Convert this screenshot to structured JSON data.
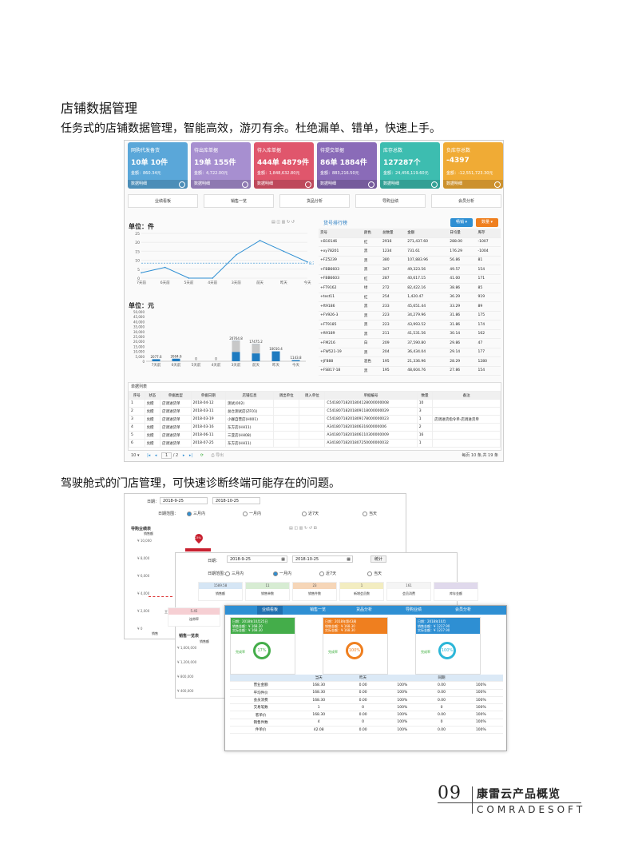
{
  "heading": "店铺数据管理",
  "para1": "任务式的店铺数据管理，智能高效，游刃有余。杜绝漏单、错单，快速上手。",
  "para2": "驾驶舱式的门店管理，可快速诊断终端可能存在的问题。",
  "cards": [
    {
      "title": "网购代发备货",
      "value": "10单  10件",
      "amount": "金额：860.34元",
      "footer": "数据明细",
      "color": "#5aa7d9"
    },
    {
      "title": "待出库单据",
      "value": "19单  155件",
      "amount": "金额：4,722.00元",
      "footer": "数据明细",
      "color": "#a78fd0"
    },
    {
      "title": "待入库单据",
      "value": "444单  4879件",
      "amount": "金额：1,848,632.80元",
      "footer": "数据明细",
      "color": "#e0566c"
    },
    {
      "title": "待提交单据",
      "value": "86单  1884件",
      "amount": "金额：883,216.50元",
      "footer": "数据明细",
      "color": "#8a6bb8"
    },
    {
      "title": "库存总数",
      "value": "127287个",
      "amount": "金额：24,456,119.60元",
      "footer": "数据明细",
      "color": "#3dbdb0"
    },
    {
      "title": "负库存总数",
      "value": "-4397",
      "amount": "金额：-12,551,723.30元",
      "footer": "数据明细",
      "color": "#f0ab35"
    }
  ],
  "tabs": [
    "业绩看板",
    "销售一览",
    "货品分析",
    "导购业绩",
    "会员分析"
  ],
  "chart1": {
    "title": "单位：件",
    "type": "line",
    "categories": [
      "7天前",
      "6天前",
      "5天前",
      "4天前",
      "3天前",
      "前天",
      "昨天",
      "今天"
    ],
    "values": [
      3,
      6,
      0,
      0,
      13,
      21,
      15,
      9
    ],
    "avg": 8.38,
    "avg_label": "8.38",
    "yticks": [
      "0",
      "5",
      "10",
      "15",
      "20",
      "25"
    ],
    "ylim": [
      0,
      25
    ]
  },
  "chart2": {
    "title": "单位：元",
    "type": "bar",
    "categories": [
      "7天前",
      "6天前",
      "5天前",
      "4天前",
      "3天前",
      "前天",
      "昨天",
      "今天"
    ],
    "values": [
      2077.6,
      2604.6,
      0,
      0,
      20764.8,
      17475.2,
      10010.4,
      1143.8
    ],
    "labels": [
      "2077.6",
      "2604.6",
      "0",
      "0",
      "20764.8",
      "17475.2",
      "10010.4",
      "1143.8"
    ],
    "yticks": [
      "0",
      "5,000",
      "10,000",
      "15,000",
      "20,000",
      "25,000",
      "30,000",
      "35,000",
      "40,000",
      "45,000",
      "50,000"
    ],
    "ylim": [
      0,
      50000
    ]
  },
  "rank": {
    "title": "货号排行榜",
    "btn1": "畅销",
    "btn2": "数量",
    "headers": [
      "货号",
      "颜色",
      "总数量",
      "金额",
      "日均量",
      "库存"
    ],
    "rows": [
      [
        "+B10146",
        "红",
        "2916",
        "271,437.60",
        "288.00",
        "-1007"
      ],
      [
        "+xy78201",
        "黑",
        "1234",
        "731.61",
        "176.29",
        "-1004"
      ],
      [
        "+FZ5239",
        "黑",
        "380",
        "107,883.96",
        "56.86",
        "81"
      ],
      [
        "+FBB6603",
        "黑",
        "347",
        "49,323.56",
        "49.57",
        "154"
      ],
      [
        "+FBB6603",
        "红",
        "287",
        "40,617.15",
        "41.00",
        "171"
      ],
      [
        "+FT9162",
        "绿",
        "272",
        "82,422.16",
        "38.86",
        "85"
      ],
      [
        "+test11",
        "红",
        "254",
        "1,420.47",
        "36.29",
        "919"
      ],
      [
        "+ft9186",
        "黑",
        "233",
        "45,651.44",
        "33.29",
        "89"
      ],
      [
        "+FV926-3",
        "黑",
        "223",
        "34,279.96",
        "31.86",
        "175"
      ],
      [
        "+FT9185",
        "黑",
        "223",
        "43,993.52",
        "31.86",
        "174"
      ],
      [
        "+ft9189",
        "黑",
        "211",
        "41,531.56",
        "30.14",
        "162"
      ],
      [
        "+FM216",
        "白",
        "209",
        "37,590.80",
        "29.86",
        "47"
      ],
      [
        "+FW521-19",
        "黑",
        "204",
        "36,434.04",
        "29.14",
        "177"
      ],
      [
        "+JF888",
        "混色",
        "195",
        "21,336.96",
        "28.29",
        "1280"
      ],
      [
        "+FSB17-18",
        "黑",
        "195",
        "48,604.76",
        "27.86",
        "154"
      ]
    ]
  },
  "bottom": {
    "title": "单据列表",
    "headers": [
      "序号",
      "状态",
      "单据类型",
      "单据日期",
      "店铺信息",
      "调出单位",
      "调入单位",
      "单据编号",
      "数量",
      "备注"
    ],
    "rows": [
      [
        "1",
        "兑擅",
        "店调进货单",
        "2018-04-12",
        "测试(002)",
        "",
        "",
        "C54180718201804128000000008",
        "10",
        ""
      ],
      [
        "2",
        "兑擅",
        "店调进货单",
        "2018-03-11",
        "总仓测试店(ZF01)",
        "",
        "",
        "C54180718201809118000000029",
        "3",
        ""
      ],
      [
        "3",
        "兑擅",
        "店调进货单",
        "2018-03-19",
        "小群自营店(H001)",
        "",
        "",
        "C54180718201809178000000023",
        "1",
        "店调进货指令单-店调进货单"
      ],
      [
        "4",
        "兑擅",
        "店调进货单",
        "2018-03-16",
        "东方店(HH11)",
        "",
        "",
        "A3418071820180631600000006",
        "2",
        ""
      ],
      [
        "5",
        "兑擅",
        "店调进货单",
        "2018-06-11",
        "三亚店(HH08)",
        "",
        "",
        "A34180718201806110300000009",
        "16",
        ""
      ],
      [
        "6",
        "兑擅",
        "店调进货单",
        "2018-07-25",
        "东方店(HH11)",
        "",
        "",
        "A34180718201807250000000032",
        "1",
        ""
      ]
    ],
    "pager": "1",
    "pages": "/ 2",
    "export": "导出",
    "summary": "每页 10 条,共 19 条"
  },
  "s2a": {
    "date_label": "日期：",
    "date_from": "2018-9-25",
    "date_to": "2018-10-25",
    "range_label": "日期范围：",
    "r1": "三月内",
    "r2": "一月内",
    "r3": "近7天",
    "r4": "当天",
    "chart_title": "导购业绩表",
    "y_label": "销售额",
    "yticks": [
      "¥ 10,000",
      "¥ 8,000",
      "¥ 6,000",
      "¥ 4,000",
      "¥ 2,000",
      "¥ 0"
    ],
    "pin": "23%",
    "cat": "王四",
    "foot": "销售"
  },
  "s2b": {
    "date_label": "日期：",
    "date_from": "2018-9-25",
    "date_to": "2018-10-25",
    "stat_btn": "统计",
    "range_label": "日期范围：",
    "r1": "三月内",
    "r2": "一月内",
    "r3": "近7天",
    "r4": "当天",
    "kpis": [
      {
        "v": "1589.58",
        "l": "销售额",
        "c": "#d6e6f5"
      },
      {
        "v": "11",
        "l": "销售单数",
        "c": "#d7ecd3"
      },
      {
        "v": "23",
        "l": "销售件数",
        "c": "#f6d6b8"
      },
      {
        "v": "1",
        "l": "新增会员数",
        "c": "#f3edc1"
      },
      {
        "v": "161",
        "l": "会员消费",
        "c": "#f5f5f5"
      },
      {
        "v": "",
        "l": "库存金额",
        "c": "#e0d9ec"
      }
    ],
    "kpi_row2": [
      {
        "v": "5.45",
        "l": "连带率",
        "c": "#f6cfd3"
      }
    ],
    "table_title": "销售一览表",
    "y_label": "销售额",
    "yticks": [
      "¥ 1,600,000",
      "¥ 1,200,000",
      "¥ 800,000",
      "¥ 400,000"
    ]
  },
  "s2c": {
    "nav": [
      "业绩看板",
      "销售一览",
      "货品分析",
      "导购业绩",
      "会员分析"
    ],
    "cards": [
      {
        "h1": "日期：2018年10月25日",
        "h2": "销售金额：¥ 168.30",
        "h3": "实际金额：¥ 168.30",
        "ring": "17%",
        "label": "完成率",
        "color": "#44ad4a",
        "ring_color": "#44ad4a"
      },
      {
        "h1": "日期：2018年第43周",
        "h2": "销售金额：¥ 168.30",
        "h3": "实际金额：¥ 168.30",
        "ring": "100%",
        "label": "完成率",
        "color": "#ef7f1f",
        "ring_color": "#ef7f1f"
      },
      {
        "h1": "日期：2018年10月",
        "h2": "销售金额：¥ 1237.90",
        "h3": "实际金额：¥ 1237.90",
        "ring": "100%",
        "label": "完成率",
        "color": "#2e8fd3",
        "ring_color": "#2bb6d8"
      }
    ],
    "headers": [
      "",
      "当天",
      "昨天",
      "",
      "同期",
      ""
    ],
    "rows": [
      [
        "营业金额",
        "168.30",
        "0.00",
        "100%",
        "0.00",
        "100%"
      ],
      [
        "平均件价",
        "168.30",
        "0.00",
        "100%",
        "0.00",
        "100%"
      ],
      [
        "会员消费",
        "168.30",
        "0.00",
        "100%",
        "0.00",
        "100%"
      ],
      [
        "交易笔数",
        "1",
        "0",
        "100%",
        "0",
        "100%"
      ],
      [
        "客单价",
        "168.30",
        "0.00",
        "100%",
        "0.00",
        "100%"
      ],
      [
        "销售件数",
        "4",
        "0",
        "100%",
        "0",
        "100%"
      ],
      [
        "件单价",
        "42.08",
        "0.00",
        "100%",
        "0.00",
        "100%"
      ]
    ]
  },
  "brand": {
    "num": "09",
    "name": "康雷云产品概览",
    "en": "COMRADESOFT"
  }
}
